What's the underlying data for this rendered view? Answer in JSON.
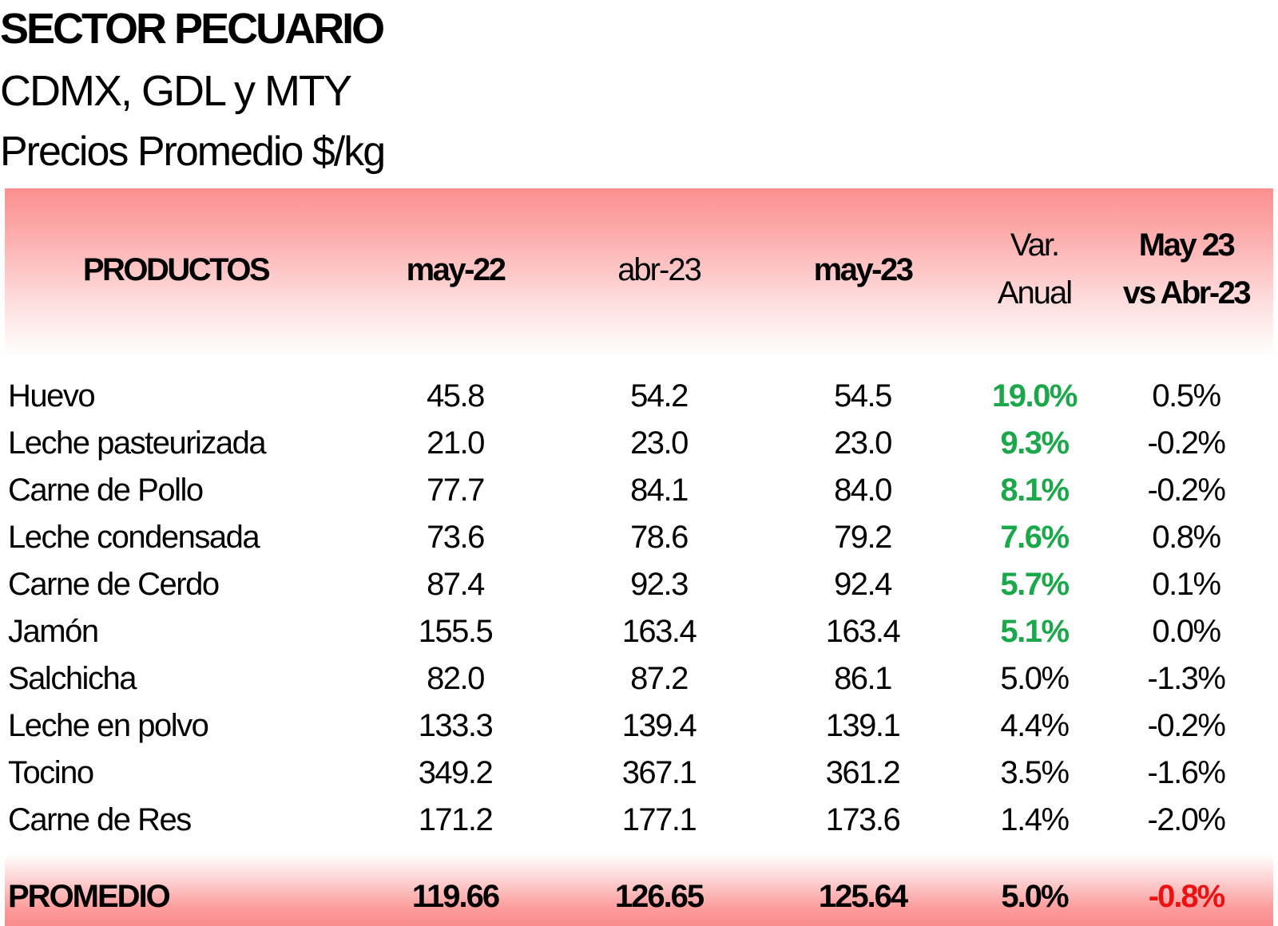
{
  "title": "SECTOR PECUARIO",
  "subtitle": "CDMX, GDL y MTY",
  "subtitle2": "Precios Promedio $/kg",
  "headers": {
    "productos": "PRODUCTOS",
    "may22": "may-22",
    "abr23": "abr-23",
    "may23": "may-23",
    "var_line1": "Var.",
    "var_line2": "Anual",
    "vs_line1": "May 23",
    "vs_line2": "vs Abr-23"
  },
  "rows": [
    {
      "product": "Huevo",
      "may22": "45.8",
      "abr23": "54.2",
      "may23": "54.5",
      "var": "19.0%",
      "vs": "0.5%"
    },
    {
      "product": "Leche pasteurizada",
      "may22": "21.0",
      "abr23": "23.0",
      "may23": "23.0",
      "var": "9.3%",
      "vs": "-0.2%"
    },
    {
      "product": "Carne de Pollo",
      "may22": "77.7",
      "abr23": "84.1",
      "may23": "84.0",
      "var": "8.1%",
      "vs": "-0.2%"
    },
    {
      "product": "Leche condensada",
      "may22": "73.6",
      "abr23": "78.6",
      "may23": "79.2",
      "var": "7.6%",
      "vs": "0.8%"
    },
    {
      "product": "Carne de Cerdo",
      "may22": "87.4",
      "abr23": "92.3",
      "may23": "92.4",
      "var": "5.7%",
      "vs": "0.1%"
    },
    {
      "product": "Jamón",
      "may22": "155.5",
      "abr23": "163.4",
      "may23": "163.4",
      "var": "5.1%",
      "vs": "0.0%"
    },
    {
      "product": "Salchicha",
      "may22": "82.0",
      "abr23": "87.2",
      "may23": "86.1",
      "var": "5.0%",
      "vs": "-1.3%"
    },
    {
      "product": "Leche en polvo",
      "may22": "133.3",
      "abr23": "139.4",
      "may23": "139.1",
      "var": "4.4%",
      "vs": "-0.2%"
    },
    {
      "product": "Tocino",
      "may22": "349.2",
      "abr23": "367.1",
      "may23": "361.2",
      "var": "3.5%",
      "vs": "-1.6%"
    },
    {
      "product": "Carne de Res",
      "may22": "171.2",
      "abr23": "177.1",
      "may23": "173.6",
      "var": "1.4%",
      "vs": "-2.0%"
    }
  ],
  "total": {
    "product": "PROMEDIO",
    "may22": "119.66",
    "abr23": "126.65",
    "may23": "125.64",
    "var": "5.0%",
    "vs": "-0.8%"
  },
  "colors": {
    "highlight_green": "#1aa84a",
    "negative_red": "#ee1111",
    "band_pink": "#fc8f8f"
  }
}
